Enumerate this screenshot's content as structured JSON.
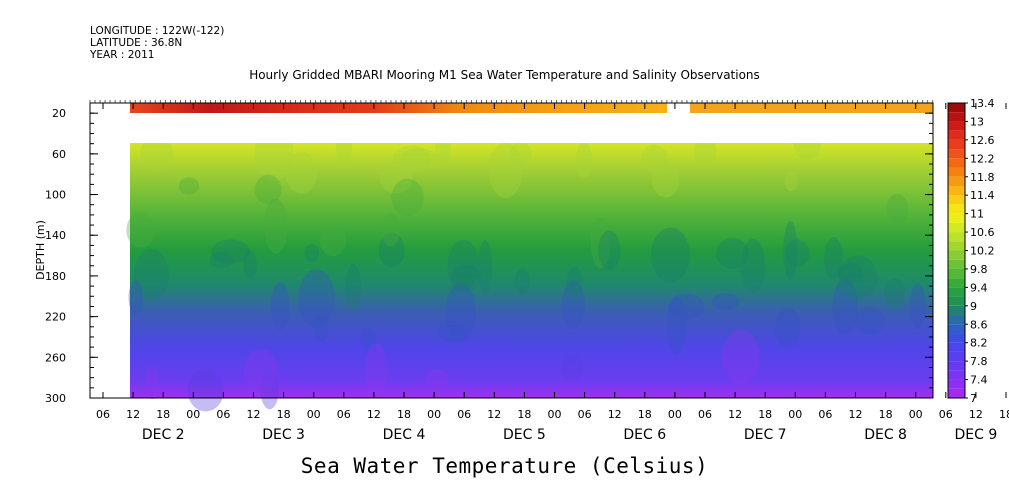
{
  "header": {
    "longitude": "LONGITUDE : 122W(-122)",
    "latitude": "LATITUDE : 36.8N",
    "year": "YEAR : 2011"
  },
  "chart_data": {
    "type": "heatmap",
    "title": "Hourly Gridded MBARI Mooring M1 Sea Water Temperature and Salinity Observations",
    "xlabel": "",
    "ylabel": "DEPTH (m)",
    "colorbar_label": "Sea Water Temperature (Celsius)",
    "y_ticks": [
      20,
      60,
      100,
      140,
      180,
      220,
      260,
      300
    ],
    "ylim": [
      300,
      10
    ],
    "y_inverted": true,
    "x_hour_ticks": [
      "06",
      "12",
      "18",
      "00",
      "06",
      "12",
      "18",
      "00",
      "06",
      "12",
      "18",
      "00",
      "06",
      "12",
      "18",
      "00",
      "06",
      "12",
      "18",
      "00",
      "06",
      "12",
      "18",
      "00",
      "06",
      "12",
      "18",
      "00",
      "06",
      "12",
      "18",
      "00"
    ],
    "x_day_labels": [
      {
        "label": "DEC  2",
        "hours_from_start": 18
      },
      {
        "label": "DEC  3",
        "hours_from_start": 42
      },
      {
        "label": "DEC  4",
        "hours_from_start": 66
      },
      {
        "label": "DEC  5",
        "hours_from_start": 90
      },
      {
        "label": "DEC  6",
        "hours_from_start": 114
      },
      {
        "label": "DEC  7",
        "hours_from_start": 138
      },
      {
        "label": "DEC  8",
        "hours_from_start": 162
      },
      {
        "label": "DEC 9",
        "hours_from_start": 180
      }
    ],
    "data_start": "DEC 2 12:00",
    "data_end": "DEC 9 00:00",
    "gap_rows_depth": [
      20,
      40
    ],
    "surface_gap_hours": [
      126,
      130
    ],
    "colorbar": {
      "levels": [
        7,
        7.2,
        7.4,
        7.6,
        7.8,
        8,
        8.2,
        8.4,
        8.6,
        8.8,
        9,
        9.2,
        9.4,
        9.6,
        9.8,
        10,
        10.2,
        10.4,
        10.6,
        10.8,
        11,
        11.2,
        11.4,
        11.6,
        11.8,
        12,
        12.2,
        12.4,
        12.6,
        12.8,
        13,
        13.2,
        13.4
      ],
      "tick_labels": [
        "7",
        "7.4",
        "7.8",
        "8.2",
        "8.6",
        "9",
        "9.4",
        "9.8",
        "10.2",
        "10.6",
        "11",
        "11.4",
        "11.8",
        "12.2",
        "12.6",
        "13",
        "13.4"
      ]
    },
    "depth_profile_typical": [
      {
        "depth": 10,
        "value": 12.6
      },
      {
        "depth": 40,
        "value": 10.9
      },
      {
        "depth": 60,
        "value": 10.4
      },
      {
        "depth": 100,
        "value": 9.8
      },
      {
        "depth": 140,
        "value": 9.2
      },
      {
        "depth": 180,
        "value": 8.7
      },
      {
        "depth": 220,
        "value": 8.1
      },
      {
        "depth": 260,
        "value": 7.7
      },
      {
        "depth": 300,
        "value": 7.3
      }
    ]
  }
}
